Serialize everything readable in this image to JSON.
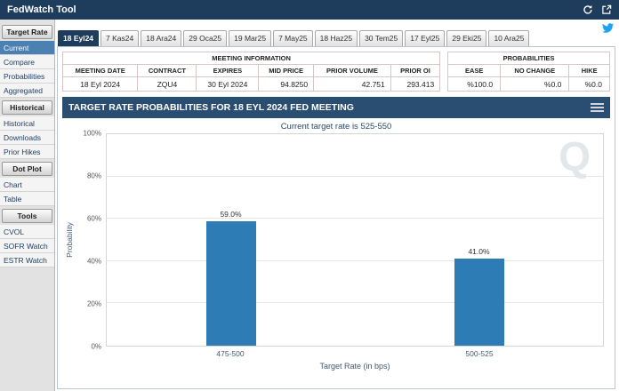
{
  "titlebar": {
    "title": "FedWatch Tool"
  },
  "icons": {
    "refresh-icon": "circular-arrow",
    "external-link-icon": "box-with-arrow",
    "twitter-share-icon": "bird",
    "chart-menu-icon": "three-lines",
    "quikstrike-watermark": "Q"
  },
  "sidebar": {
    "sections": [
      {
        "header": "Target Rate",
        "items": [
          {
            "label": "Current",
            "selected": true
          },
          {
            "label": "Compare",
            "selected": false
          },
          {
            "label": "Probabilities",
            "selected": false
          },
          {
            "label": "Aggregated",
            "selected": false
          }
        ]
      },
      {
        "header": "Historical",
        "items": [
          {
            "label": "Historical",
            "selected": false
          },
          {
            "label": "Downloads",
            "selected": false
          },
          {
            "label": "Prior Hikes",
            "selected": false
          }
        ]
      },
      {
        "header": "Dot Plot",
        "items": [
          {
            "label": "Chart",
            "selected": false
          },
          {
            "label": "Table",
            "selected": false
          }
        ]
      },
      {
        "header": "Tools",
        "items": [
          {
            "label": "CVOL",
            "selected": false
          },
          {
            "label": "SOFR Watch",
            "selected": false
          },
          {
            "label": "ESTR Watch",
            "selected": false
          }
        ]
      }
    ]
  },
  "tabs": [
    {
      "label": "18 Eyl24",
      "selected": true
    },
    {
      "label": "7 Kas24",
      "selected": false
    },
    {
      "label": "18 Ara24",
      "selected": false
    },
    {
      "label": "29 Oca25",
      "selected": false
    },
    {
      "label": "19 Mar25",
      "selected": false
    },
    {
      "label": "7 May25",
      "selected": false
    },
    {
      "label": "18 Haz25",
      "selected": false
    },
    {
      "label": "30 Tem25",
      "selected": false
    },
    {
      "label": "17 Eyl25",
      "selected": false
    },
    {
      "label": "29 Eki25",
      "selected": false
    },
    {
      "label": "10 Ara25",
      "selected": false
    }
  ],
  "meeting_info": {
    "title": "MEETING INFORMATION",
    "columns": [
      "MEETING DATE",
      "CONTRACT",
      "EXPIRES",
      "MID PRICE",
      "PRIOR VOLUME",
      "PRIOR OI"
    ],
    "values": [
      "18 Eyl 2024",
      "ZQU4",
      "30 Eyl 2024",
      "94.8250",
      "42.751",
      "293.413"
    ]
  },
  "probabilities_table": {
    "title": "PROBABILITIES",
    "columns": [
      "EASE",
      "NO CHANGE",
      "HIKE"
    ],
    "values": [
      "%100.0",
      "%0.0",
      "%0.0"
    ]
  },
  "chart": {
    "header": "TARGET RATE PROBABILITIES FOR 18 EYL 2024 FED MEETING",
    "subtitle": "Current target rate is 525-550",
    "watermark": "Q"
  },
  "chart_data": {
    "type": "bar",
    "title": "TARGET RATE PROBABILITIES FOR 18 EYL 2024 FED MEETING",
    "subtitle": "Current target rate is 525-550",
    "categories": [
      "475-500",
      "500-525"
    ],
    "values": [
      59.0,
      41.0
    ],
    "value_labels": [
      "59.0%",
      "41.0%"
    ],
    "xlabel": "Target Rate (in bps)",
    "ylabel": "Probability",
    "ylim": [
      0,
      100
    ],
    "yticks": [
      "0%",
      "20%",
      "40%",
      "60%",
      "80%",
      "100%"
    ],
    "grid": true,
    "legend": false,
    "bar_color": "#2e7cb5"
  },
  "colors": {
    "titlebar_navy": "#1e3c5c",
    "chart_header_navy": "#2a4d72",
    "selected_item_blue": "#4a80b2",
    "bar_blue": "#2e7cb5",
    "twitter_blue": "#1da1f2"
  }
}
